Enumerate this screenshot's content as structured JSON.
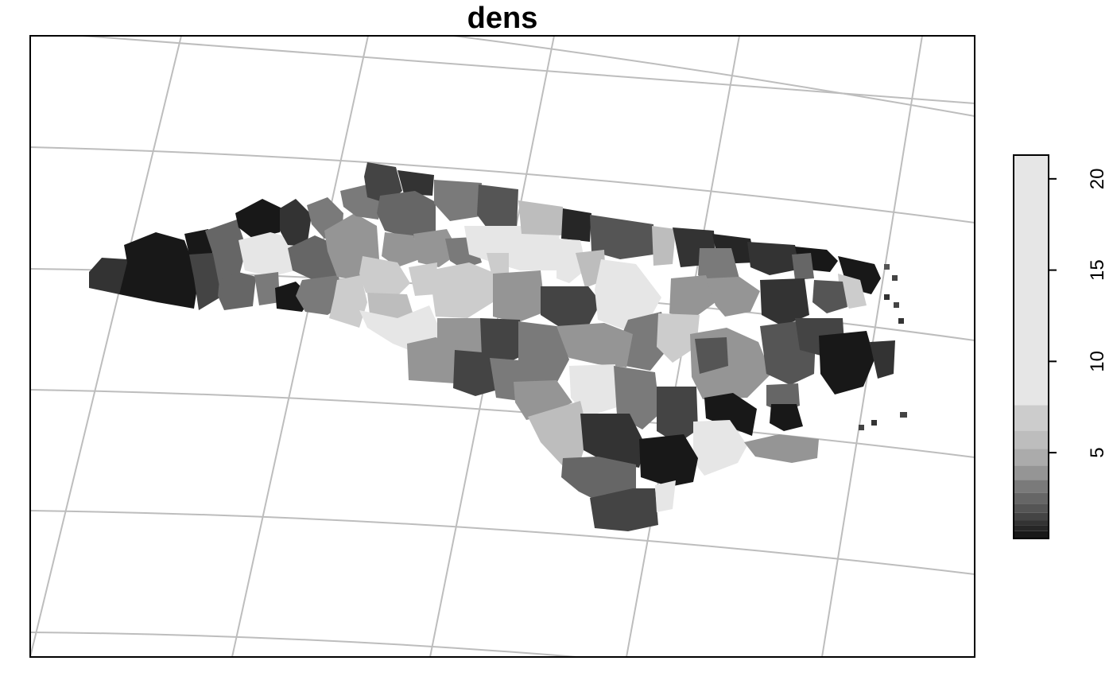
{
  "title": "dens",
  "legend": {
    "tick_labels": [
      "5",
      "10",
      "15",
      "20"
    ],
    "ticks": [
      5,
      10,
      15,
      20
    ],
    "value_range": [
      0.3,
      21.3
    ],
    "bands": [
      {
        "from": 0.3,
        "to": 0.7,
        "color": "#181818"
      },
      {
        "from": 0.7,
        "to": 1.0,
        "color": "#262626"
      },
      {
        "from": 1.0,
        "to": 1.3,
        "color": "#333333"
      },
      {
        "from": 1.3,
        "to": 1.7,
        "color": "#444444"
      },
      {
        "from": 1.7,
        "to": 2.2,
        "color": "#555555"
      },
      {
        "from": 2.2,
        "to": 2.8,
        "color": "#666666"
      },
      {
        "from": 2.8,
        "to": 3.5,
        "color": "#7a7a7a"
      },
      {
        "from": 3.5,
        "to": 4.3,
        "color": "#959595"
      },
      {
        "from": 4.3,
        "to": 5.2,
        "color": "#ababab"
      },
      {
        "from": 5.2,
        "to": 6.2,
        "color": "#bdbdbd"
      },
      {
        "from": 6.2,
        "to": 7.6,
        "color": "#cccccc"
      },
      {
        "from": 7.6,
        "to": 21.3,
        "color": "#e6e6e6"
      }
    ]
  },
  "colors": {
    "graticule": "#bdbdbd",
    "frame": "#000000",
    "background": "#ffffff"
  }
}
